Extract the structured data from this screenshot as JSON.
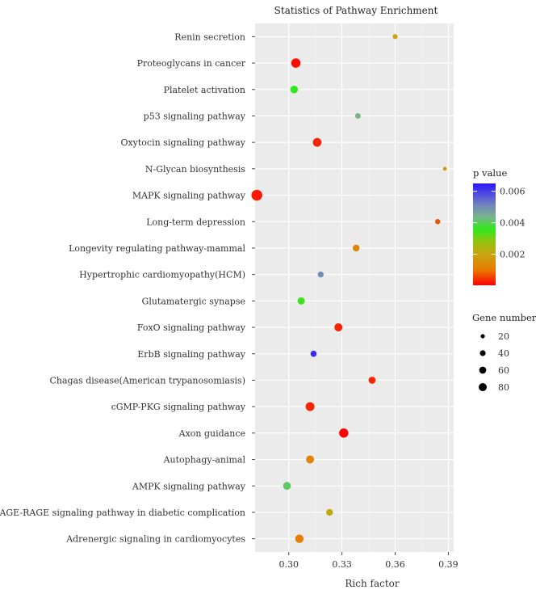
{
  "chart_data": {
    "type": "scatter",
    "title": "Statistics of Pathway Enrichment",
    "xlabel": "Rich factor",
    "ylabel": "",
    "xlim": [
      0.281,
      0.393
    ],
    "x_ticks": [
      "0.30",
      "0.33",
      "0.36",
      "0.39"
    ],
    "x_tick_values": [
      0.3,
      0.33,
      0.36,
      0.39
    ],
    "grid": true,
    "points": [
      {
        "pathway": "Renin secretion",
        "rich_factor": 0.36,
        "p_value": 0.0019,
        "gene_number": 17
      },
      {
        "pathway": "Proteoglycans in cancer",
        "rich_factor": 0.304,
        "p_value": 0.0001,
        "gene_number": 65
      },
      {
        "pathway": "Platelet activation",
        "rich_factor": 0.303,
        "p_value": 0.0036,
        "gene_number": 42
      },
      {
        "pathway": "p53 signaling pathway",
        "rich_factor": 0.339,
        "p_value": 0.0044,
        "gene_number": 22
      },
      {
        "pathway": "Oxytocin signaling pathway",
        "rich_factor": 0.316,
        "p_value": 0.0003,
        "gene_number": 55
      },
      {
        "pathway": "N-Glycan biosynthesis",
        "rich_factor": 0.388,
        "p_value": 0.0016,
        "gene_number": 9
      },
      {
        "pathway": "MAPK signaling pathway",
        "rich_factor": 0.282,
        "p_value": 0.0002,
        "gene_number": 88
      },
      {
        "pathway": "Long-term depression",
        "rich_factor": 0.384,
        "p_value": 0.0007,
        "gene_number": 19
      },
      {
        "pathway": "Longevity regulating pathway-mammal",
        "rich_factor": 0.338,
        "p_value": 0.0012,
        "gene_number": 33
      },
      {
        "pathway": "Hypertrophic cardiomyopathy(HCM)",
        "rich_factor": 0.318,
        "p_value": 0.005,
        "gene_number": 25
      },
      {
        "pathway": "Glutamatergic synapse",
        "rich_factor": 0.307,
        "p_value": 0.0035,
        "gene_number": 38
      },
      {
        "pathway": "FoxO signaling pathway",
        "rich_factor": 0.328,
        "p_value": 0.0003,
        "gene_number": 48
      },
      {
        "pathway": "ErbB signaling pathway",
        "rich_factor": 0.314,
        "p_value": 0.0062,
        "gene_number": 27
      },
      {
        "pathway": "Chagas disease(American trypanosomiasis)",
        "rich_factor": 0.347,
        "p_value": 0.0003,
        "gene_number": 36
      },
      {
        "pathway": "cGMP-PKG signaling pathway",
        "rich_factor": 0.312,
        "p_value": 0.0003,
        "gene_number": 58
      },
      {
        "pathway": "Axon guidance",
        "rich_factor": 0.331,
        "p_value": 2e-05,
        "gene_number": 62
      },
      {
        "pathway": "Autophagy-animal",
        "rich_factor": 0.312,
        "p_value": 0.0012,
        "gene_number": 46
      },
      {
        "pathway": "AMPK signaling pathway",
        "rich_factor": 0.299,
        "p_value": 0.0041,
        "gene_number": 44
      },
      {
        "pathway": "AGE-RAGE signaling pathway in diabetic complication",
        "rich_factor": 0.323,
        "p_value": 0.0021,
        "gene_number": 33
      },
      {
        "pathway": "Adrenergic signaling in cardiomyocytes",
        "rich_factor": 0.306,
        "p_value": 0.0011,
        "gene_number": 52
      }
    ],
    "color_legend": {
      "title": "p value",
      "ticks": [
        "0.006",
        "0.004",
        "0.002"
      ],
      "tick_values": [
        0.006,
        0.004,
        0.002
      ],
      "range": [
        2e-05,
        0.0065
      ],
      "stops": [
        {
          "value": 0.0,
          "color": "#ff0000"
        },
        {
          "value": 0.001,
          "color": "#e87a00"
        },
        {
          "value": 0.002,
          "color": "#c9a512"
        },
        {
          "value": 0.0028,
          "color": "#93c20f"
        },
        {
          "value": 0.0036,
          "color": "#30e81e"
        },
        {
          "value": 0.0044,
          "color": "#7ab38d"
        },
        {
          "value": 0.0052,
          "color": "#6f7fc0"
        },
        {
          "value": 0.0065,
          "color": "#2a14ff"
        }
      ]
    },
    "size_legend": {
      "title": "Gene number",
      "labels": [
        "20",
        "40",
        "60",
        "80"
      ],
      "values": [
        20,
        40,
        60,
        80
      ]
    }
  },
  "colors": {
    "panel_background": "#ebebeb",
    "grid_major": "#ffffff",
    "grid_minor": "#f4f4f4",
    "text": "#333333",
    "point_legend": "#000000"
  }
}
